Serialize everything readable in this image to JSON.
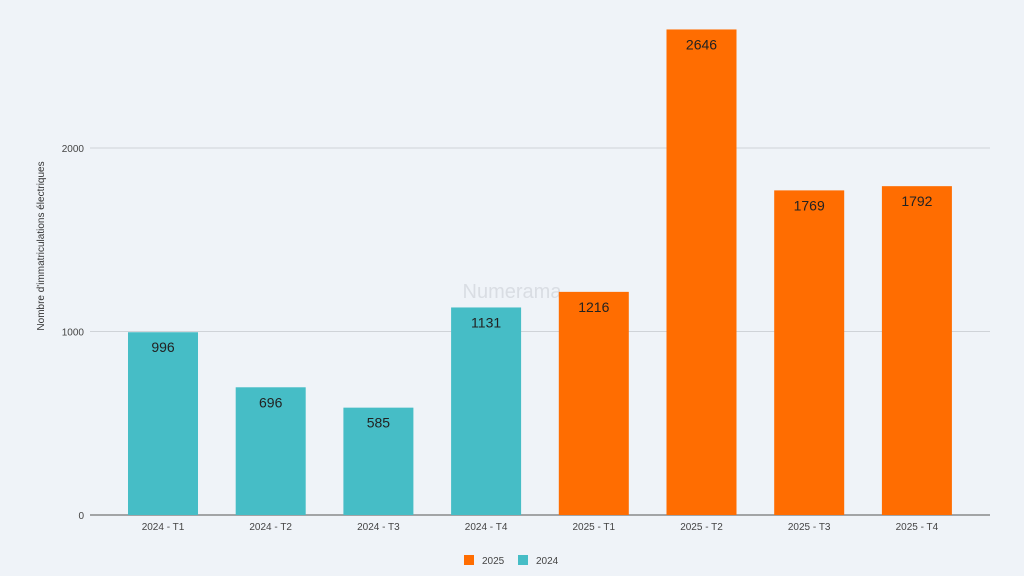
{
  "chart_data": {
    "type": "bar",
    "title": "",
    "xlabel": "",
    "ylabel": "Nombre d'immatriculations électriques",
    "watermark": "Numerama",
    "categories": [
      "2024 - T1",
      "2024 - T2",
      "2024 - T3",
      "2024 - T4",
      "2025 - T1",
      "2025 - T2",
      "2025 - T3",
      "2025 - T4"
    ],
    "values": [
      996,
      696,
      585,
      1131,
      1216,
      2646,
      1769,
      1792
    ],
    "bar_series": [
      "2024",
      "2024",
      "2024",
      "2024",
      "2025",
      "2025",
      "2025",
      "2025"
    ],
    "series": [
      {
        "name": "2025",
        "color": "#ff6d01"
      },
      {
        "name": "2024",
        "color": "#46bdc6"
      }
    ],
    "yticks": [
      "0",
      "1000",
      "2000"
    ],
    "ylim": [
      0,
      2700
    ],
    "grid": true,
    "legend_position": "bottom",
    "data_labels": true
  }
}
